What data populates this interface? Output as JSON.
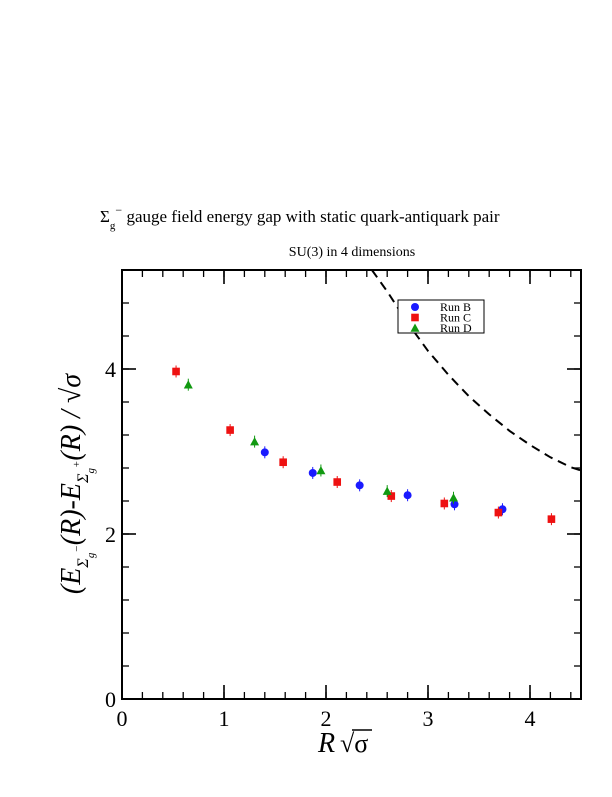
{
  "chart_data": {
    "type": "scatter",
    "title_prefix": "Σ",
    "title_sub": "g",
    "title_sup": "−",
    "title_rest": " gauge field energy gap with static quark-antiquark pair",
    "subtitle": "SU(3) in 4 dimensions",
    "xlabel": "R √σ",
    "ylabel": "(E_{Σ_g^-}(R) − E_{Σ_g^+}(R)) / √σ",
    "xlim": [
      0,
      4.5
    ],
    "ylim": [
      0,
      5.2
    ],
    "x_ticks": [
      0,
      1,
      2,
      3,
      4
    ],
    "y_ticks": [
      0,
      2,
      4
    ],
    "x_minor": 0.2,
    "y_minor": 0.4,
    "legend_position": "top-right",
    "series": [
      {
        "name": "Run B",
        "marker": "circle",
        "color": "#1a1aff",
        "points": [
          [
            1.4,
            2.99
          ],
          [
            1.87,
            2.74
          ],
          [
            2.33,
            2.59
          ],
          [
            2.8,
            2.47
          ],
          [
            3.26,
            2.36
          ],
          [
            3.73,
            2.3
          ]
        ]
      },
      {
        "name": "Run C",
        "marker": "square",
        "color": "#ee1111",
        "points": [
          [
            0.53,
            3.97
          ],
          [
            1.06,
            3.26
          ],
          [
            1.58,
            2.87
          ],
          [
            2.11,
            2.63
          ],
          [
            2.64,
            2.46
          ],
          [
            3.16,
            2.37
          ],
          [
            3.69,
            2.26
          ],
          [
            4.21,
            2.18
          ]
        ]
      },
      {
        "name": "Run D",
        "marker": "triangle",
        "color": "#119911",
        "points": [
          [
            0.65,
            3.81
          ],
          [
            1.3,
            3.12
          ],
          [
            1.95,
            2.77
          ],
          [
            2.6,
            2.52
          ],
          [
            3.25,
            2.44
          ]
        ]
      }
    ],
    "reference_curve": {
      "style": "dashed",
      "x": [
        2.45,
        2.6,
        2.8,
        3.0,
        3.2,
        3.4,
        3.6,
        3.8,
        4.0,
        4.2,
        4.4,
        4.5
      ],
      "y": [
        5.2,
        4.94,
        4.56,
        4.22,
        3.93,
        3.67,
        3.45,
        3.25,
        3.08,
        2.93,
        2.81,
        2.77
      ]
    }
  }
}
